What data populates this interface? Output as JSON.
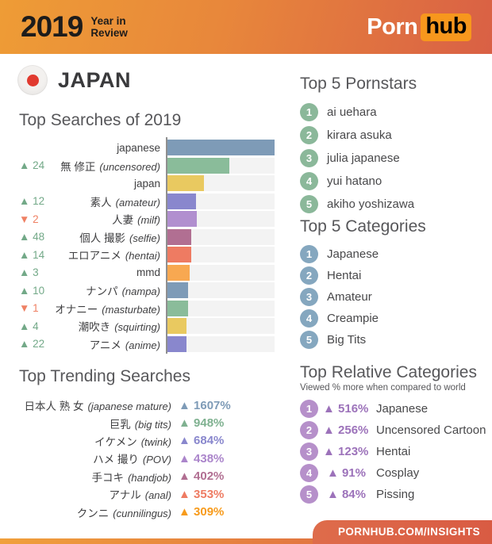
{
  "header": {
    "year": "2019",
    "tagline_line1": "Year in",
    "tagline_line2": "Review",
    "logo_porn": "Porn",
    "logo_hub": "hub"
  },
  "country": "JAPAN",
  "chart_data": [
    {
      "type": "bar",
      "title": "Top Searches of 2019",
      "orientation": "horizontal",
      "value_unit": "percent of longest bar (relative search volume)",
      "xlim": [
        0,
        100
      ],
      "grid": false,
      "rows": [
        {
          "rank_change": "",
          "label": "japanese",
          "note": "",
          "value": 100,
          "color": "#7e9bb7",
          "change_color": ""
        },
        {
          "rank_change": "▲ 24",
          "label": "無 修正",
          "note": "(uncensored)",
          "value": 58,
          "color": "#8abc9a",
          "change_color": "#73a988"
        },
        {
          "rank_change": "",
          "label": "japan",
          "note": "",
          "value": 34,
          "color": "#e9c960",
          "change_color": ""
        },
        {
          "rank_change": "▲ 12",
          "label": "素人",
          "note": "(amateur)",
          "value": 27,
          "color": "#8987cd",
          "change_color": "#73a988"
        },
        {
          "rank_change": "▼ 2",
          "label": "人妻",
          "note": "(milf)",
          "value": 27.5,
          "color": "#b18fcf",
          "change_color": "#ef8164"
        },
        {
          "rank_change": "▲ 48",
          "label": "個人 撮影",
          "note": "(selfie)",
          "value": 22.5,
          "color": "#b16f92",
          "change_color": "#73a988"
        },
        {
          "rank_change": "▲ 14",
          "label": "エロアニメ",
          "note": "(hentai)",
          "value": 22.5,
          "color": "#ee7b62",
          "change_color": "#73a988"
        },
        {
          "rank_change": "▲ 3",
          "label": "mmd",
          "note": "",
          "value": 20.5,
          "color": "#f8a851",
          "change_color": "#73a988"
        },
        {
          "rank_change": "▲ 10",
          "label": "ナンパ",
          "note": "(nampa)",
          "value": 19.5,
          "color": "#7e9bb7",
          "change_color": "#73a988"
        },
        {
          "rank_change": "▼ 1",
          "label": "オナニー",
          "note": "(masturbate)",
          "value": 19.5,
          "color": "#8abc9a",
          "change_color": "#ef8164"
        },
        {
          "rank_change": "▲ 4",
          "label": "潮吹き",
          "note": "(squirting)",
          "value": 18,
          "color": "#e9c960",
          "change_color": "#73a988"
        },
        {
          "rank_change": "▲ 22",
          "label": "アニメ",
          "note": "(anime)",
          "value": 18,
          "color": "#8987cd",
          "change_color": "#73a988"
        }
      ]
    },
    {
      "type": "table",
      "title": "Top Trending Searches",
      "rows": [
        {
          "label": "日本人 熟 女",
          "note": "(japanese mature)",
          "pct": "▲ 1607%",
          "color": "#7e9bb7"
        },
        {
          "label": "巨乳",
          "note": "(big tits)",
          "pct": "▲ 948%",
          "color": "#7fb190"
        },
        {
          "label": "イケメン",
          "note": "(twink)",
          "pct": "▲ 684%",
          "color": "#8987cd"
        },
        {
          "label": "ハメ 撮り",
          "note": "(POV)",
          "pct": "▲ 438%",
          "color": "#ab85cb"
        },
        {
          "label": "手コキ",
          "note": "(handjob)",
          "pct": "▲ 402%",
          "color": "#b16f92"
        },
        {
          "label": "アナル",
          "note": "(anal)",
          "pct": "▲ 353%",
          "color": "#ee7b62"
        },
        {
          "label": "クンニ",
          "note": "(cunnilingus)",
          "pct": "▲ 309%",
          "color": "#f79b1c"
        }
      ]
    }
  ],
  "pornstars": {
    "title": "Top 5 Pornstars",
    "circle_color": "#8bb89a",
    "items": [
      {
        "rank": "1",
        "name": "ai uehara"
      },
      {
        "rank": "2",
        "name": "kirara asuka"
      },
      {
        "rank": "3",
        "name": "julia japanese"
      },
      {
        "rank": "4",
        "name": "yui hatano"
      },
      {
        "rank": "5",
        "name": "akiho yoshizawa"
      }
    ]
  },
  "categories": {
    "title": "Top 5 Categories",
    "circle_color": "#85a7bf",
    "items": [
      {
        "rank": "1",
        "name": "Japanese"
      },
      {
        "rank": "2",
        "name": "Hentai"
      },
      {
        "rank": "3",
        "name": "Amateur"
      },
      {
        "rank": "4",
        "name": "Creampie"
      },
      {
        "rank": "5",
        "name": "Big Tits"
      }
    ]
  },
  "relative": {
    "title": "Top Relative Categories",
    "subtitle": "Viewed % more when compared to world",
    "circle_color": "#b690ca",
    "pct_color": "#9c72ba",
    "items": [
      {
        "rank": "1",
        "pct": "▲ 516%",
        "label": "Japanese"
      },
      {
        "rank": "2",
        "pct": "▲ 256%",
        "label": "Uncensored Cartoon"
      },
      {
        "rank": "3",
        "pct": "▲ 123%",
        "label": "Hentai"
      },
      {
        "rank": "4",
        "pct": "▲ 91%",
        "label": "Cosplay"
      },
      {
        "rank": "5",
        "pct": "▲ 84%",
        "label": "Pissing"
      }
    ]
  },
  "footer": {
    "link": "PORNHUB.COM/INSIGHTS"
  },
  "colors": {
    "header_gradient_left": "#ee9c36",
    "header_gradient_right": "#d96045",
    "hub_badge": "#f7971d",
    "flag_red": "#e13a2f",
    "title_gray": "#57575a",
    "text_dark": "#3f3f41",
    "axis_line": "#8f8f8f",
    "bar_track": "#f3f3f3",
    "up_green": "#73a988",
    "down_red": "#ef8164"
  }
}
